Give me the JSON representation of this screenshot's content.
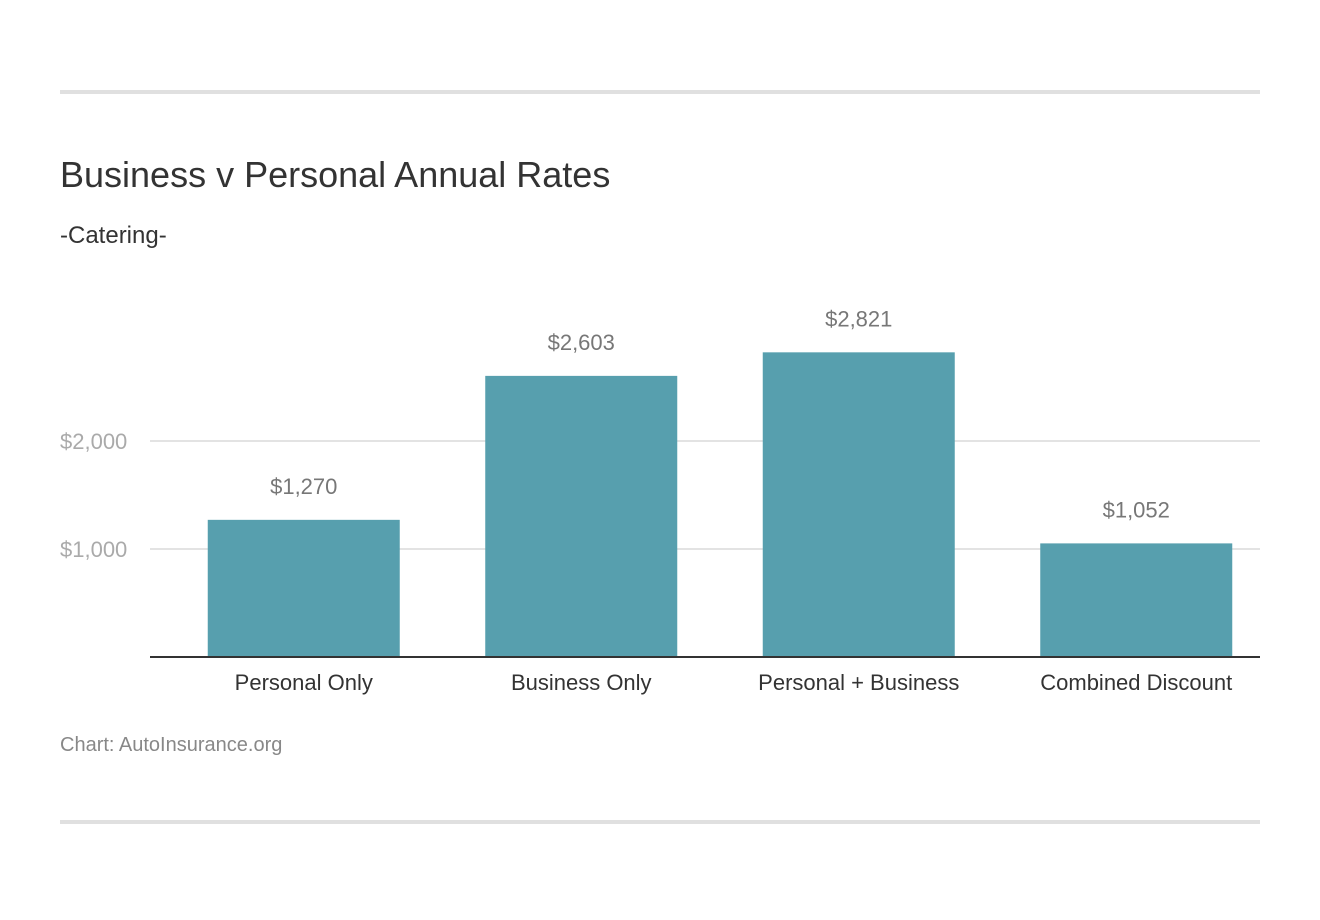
{
  "chart_data": {
    "type": "bar",
    "title": "Business v Personal Annual Rates",
    "subtitle": "-Catering-",
    "categories": [
      "Personal Only",
      "Business Only",
      "Personal + Business",
      "Combined Discount"
    ],
    "values": [
      1270,
      2603,
      2821,
      1052
    ],
    "value_labels": [
      "$1,270",
      "$2,603",
      "$2,821",
      "$1,052"
    ],
    "yticks": [
      1000,
      2000
    ],
    "ytick_labels": [
      "$1,000",
      "$2,000"
    ],
    "xlabel": "",
    "ylabel": "",
    "ylim": [
      0,
      3000
    ],
    "grid": true,
    "source": "Chart: AutoInsurance.org",
    "colors": {
      "bar": "#579fae",
      "grid": "#e3e3e3",
      "axis": "#333333"
    }
  }
}
